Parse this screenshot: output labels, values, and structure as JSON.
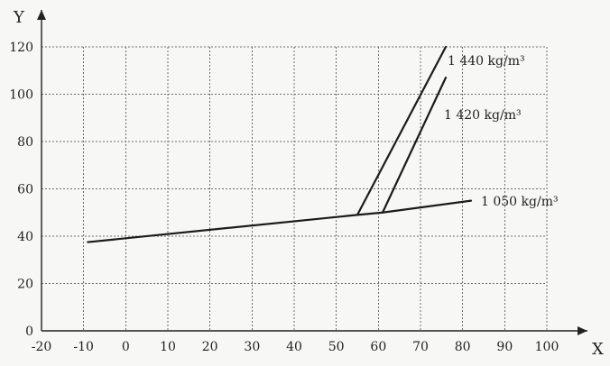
{
  "chart_data": {
    "type": "line",
    "xlabel": "X",
    "ylabel": "Y",
    "xlim": [
      -20,
      100
    ],
    "ylim": [
      0,
      120
    ],
    "xticks": [
      -20,
      -10,
      0,
      10,
      20,
      30,
      40,
      50,
      60,
      70,
      80,
      90,
      100
    ],
    "yticks": [
      0,
      20,
      40,
      60,
      80,
      100,
      120
    ],
    "grid": true,
    "series": [
      {
        "name": "1 050  kg/m³",
        "points": [
          [
            -9,
            37.5
          ],
          [
            55,
            49
          ],
          [
            61,
            50
          ],
          [
            82,
            55
          ]
        ]
      },
      {
        "name": "1 440 kg/m³",
        "points": [
          [
            55,
            49
          ],
          [
            76,
            120
          ]
        ]
      },
      {
        "name": "1 420 kg/m³",
        "points": [
          [
            61,
            50
          ],
          [
            76,
            107
          ]
        ]
      }
    ]
  },
  "colors": {
    "line": "#1b1b1b",
    "grid": "#6c6c6c",
    "axis": "#222222"
  }
}
